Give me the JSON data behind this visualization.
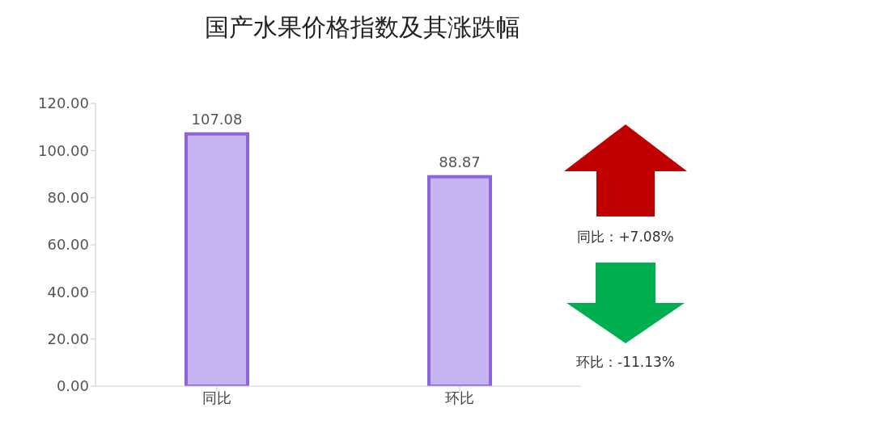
{
  "chart_data": {
    "type": "bar",
    "title": "国产水果价格指数及其涨跌幅",
    "categories": [
      "同比",
      "环比"
    ],
    "values": [
      107.08,
      88.87
    ],
    "color": "#c5b3f2",
    "ylim": [
      0,
      120
    ],
    "yticks": [
      {
        "value": 0,
        "label": "0.00"
      },
      {
        "value": 20,
        "label": "20.00"
      },
      {
        "value": 40,
        "label": "40.00"
      },
      {
        "value": 60,
        "label": "60.00"
      },
      {
        "value": 80,
        "label": "80.00"
      },
      {
        "value": 100,
        "label": "100.00"
      },
      {
        "value": 120,
        "label": "120.00"
      }
    ],
    "data_labels": true,
    "annotations": [
      "同比：+7.08%",
      "环比：-11.13%"
    ]
  }
}
